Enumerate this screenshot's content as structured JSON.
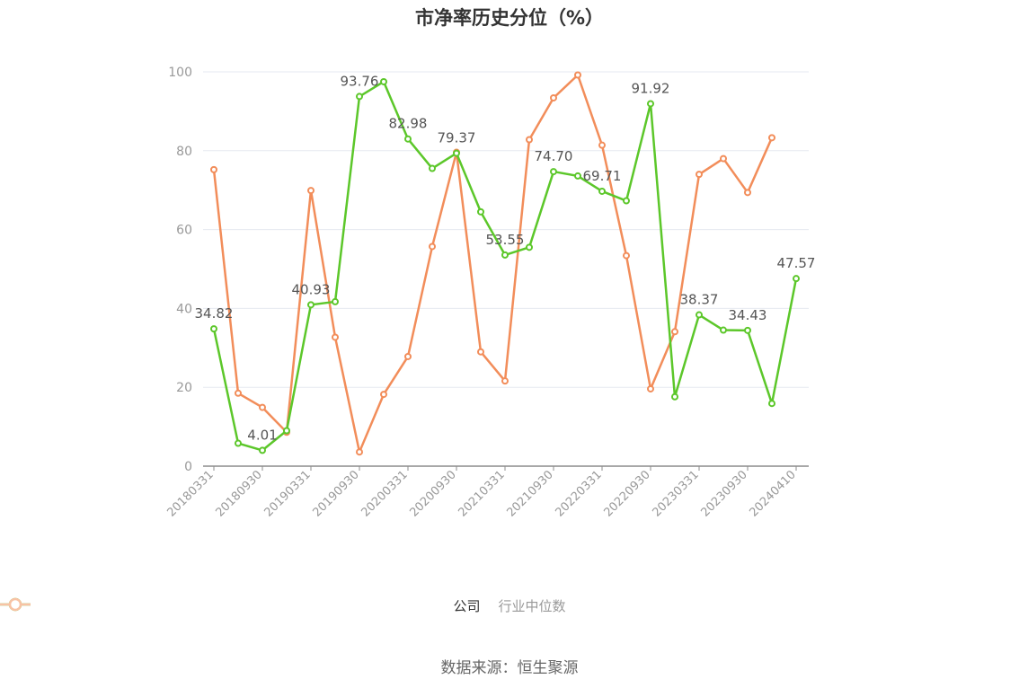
{
  "chart_data": {
    "type": "line",
    "title": "市净率历史分位（%）",
    "source": "数据来源：恒生聚源",
    "ylim": [
      0,
      100
    ],
    "y_ticks": [
      0,
      20,
      40,
      60,
      80,
      100
    ],
    "x_tick_labels": [
      "20180331",
      "20180930",
      "20190331",
      "20190930",
      "20200331",
      "20200930",
      "20210331",
      "20210930",
      "20220331",
      "20220930",
      "20230331",
      "20230930",
      "20240410"
    ],
    "x": [
      "20180331",
      "20180630",
      "20180930",
      "20181231",
      "20190331",
      "20190630",
      "20190930",
      "20191231",
      "20200331",
      "20200630",
      "20200930",
      "20201231",
      "20210331",
      "20210630",
      "20210930",
      "20211231",
      "20220331",
      "20220630",
      "20220930",
      "20221231",
      "20230331",
      "20230630",
      "20230930",
      "20231231",
      "20240410"
    ],
    "series": [
      {
        "name": "公司",
        "color": "#5cc72a",
        "values": [
          34.82,
          5.8,
          4.01,
          9.0,
          40.93,
          41.7,
          93.76,
          97.5,
          82.98,
          75.5,
          79.37,
          64.5,
          53.55,
          55.5,
          74.7,
          73.6,
          69.71,
          67.3,
          91.92,
          17.6,
          38.37,
          34.5,
          34.43,
          15.9,
          47.57
        ],
        "labels": [
          "34.82",
          null,
          "4.01",
          null,
          "40.93",
          null,
          "93.76",
          null,
          "82.98",
          null,
          "79.37",
          null,
          "53.55",
          null,
          "74.70",
          null,
          "69.71",
          null,
          "91.92",
          null,
          "38.37",
          null,
          "34.43",
          null,
          "47.57"
        ]
      },
      {
        "name": "行业中位数",
        "color": "#f28d5a",
        "values": [
          75.2,
          18.5,
          14.9,
          8.6,
          69.9,
          32.7,
          3.6,
          18.2,
          27.8,
          55.7,
          79.6,
          29.0,
          21.6,
          82.8,
          93.4,
          99.2,
          81.4,
          53.4,
          19.6,
          34.1,
          74.0,
          78.0,
          69.4,
          83.3,
          null
        ]
      }
    ],
    "grid": true,
    "legend_position": "bottom-center"
  }
}
